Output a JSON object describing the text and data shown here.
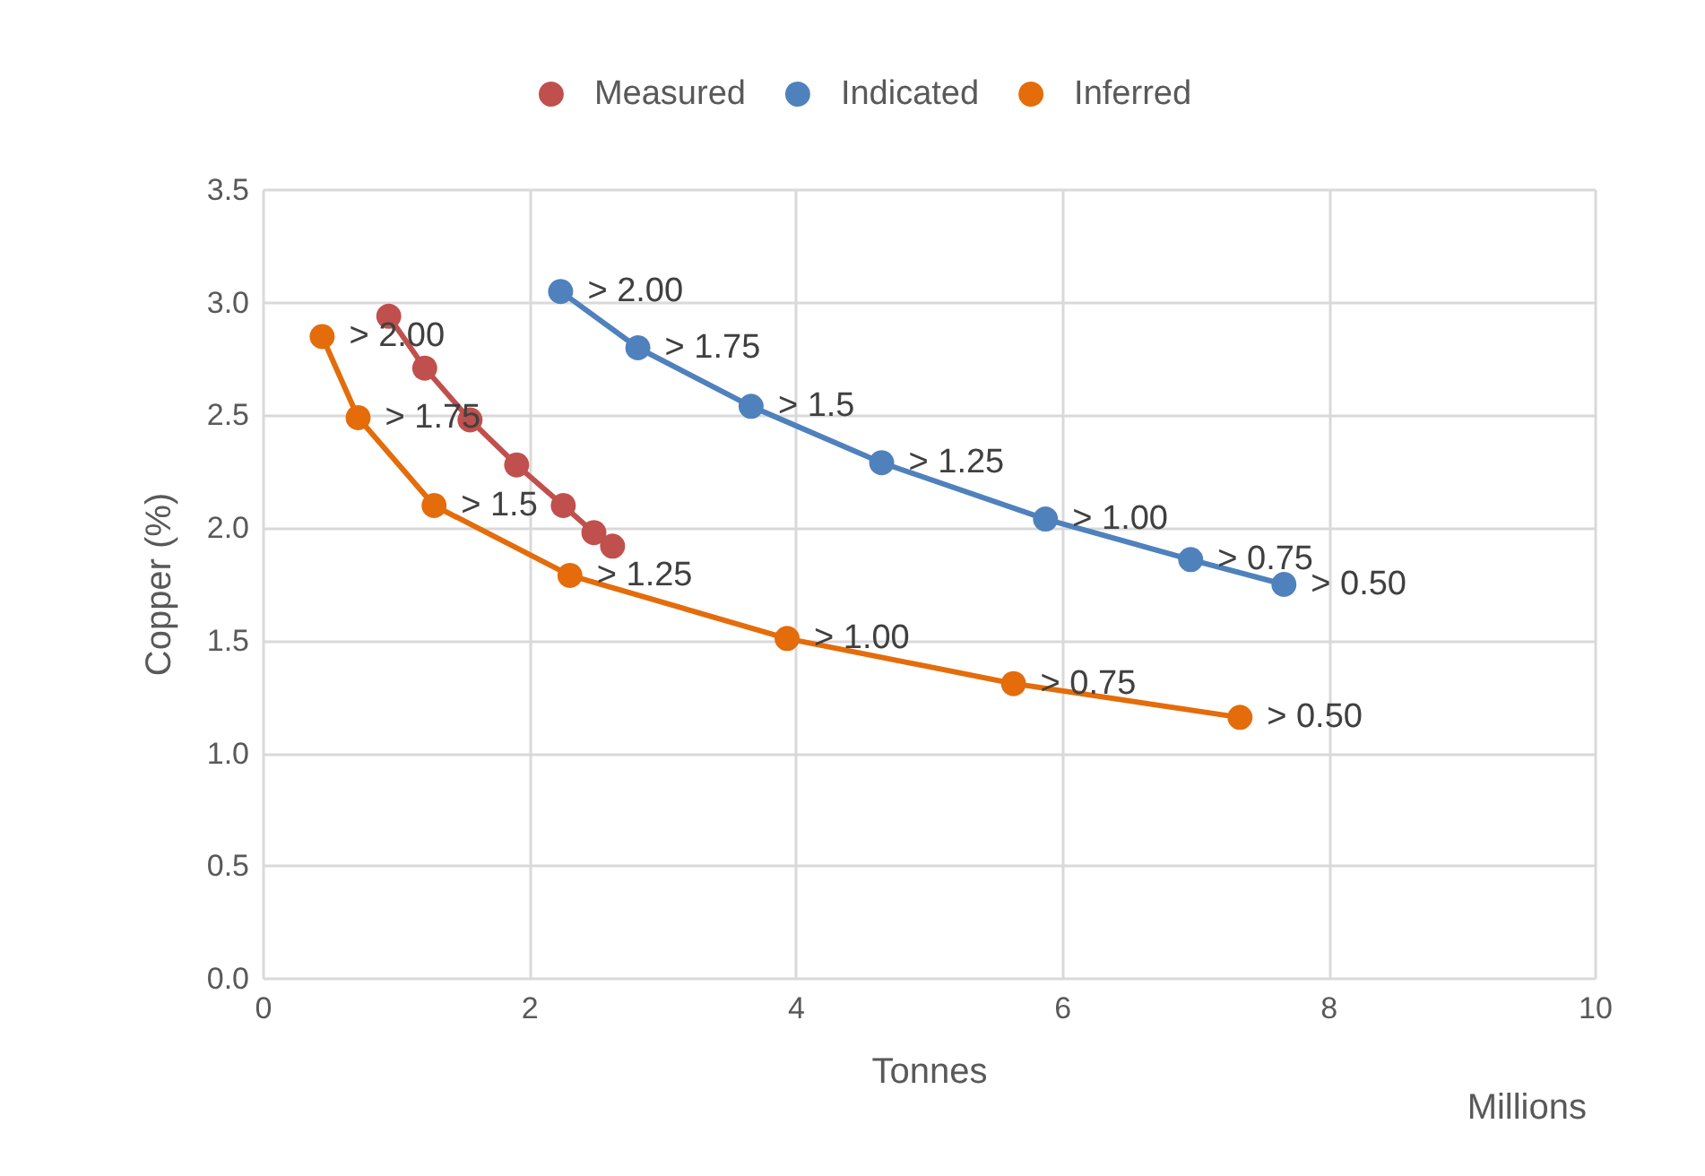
{
  "chart_data": {
    "type": "line",
    "xlabel": "Tonnes",
    "ylabel": "Copper (%)",
    "annotations": [
      "Millions"
    ],
    "xlim": [
      0,
      10
    ],
    "xticks": [
      0,
      2,
      4,
      6,
      8,
      10
    ],
    "ylim": [
      0,
      3.5
    ],
    "yticks": [
      {
        "value": 0,
        "label": "0.0"
      },
      {
        "value": 0.5,
        "label": "0.5"
      },
      {
        "value": 1,
        "label": "1.0"
      },
      {
        "value": 1.5,
        "label": "1.5"
      },
      {
        "value": 2,
        "label": "2.0"
      },
      {
        "value": 2.5,
        "label": "2.5"
      },
      {
        "value": 3,
        "label": "3.0"
      },
      {
        "value": 3.5,
        "label": "3.5"
      }
    ],
    "grid": true,
    "legend": "top",
    "marker": "circle",
    "line_style": "solid",
    "series": [
      {
        "name": "Measured",
        "color": "#c0504d",
        "x": [
          0.94,
          1.21,
          1.55,
          1.9,
          2.25,
          2.48,
          2.62
        ],
        "values": [
          2.94,
          2.71,
          2.48,
          2.28,
          2.1,
          1.98,
          1.92
        ]
      },
      {
        "name": "Indicated",
        "color": "#4f81bd",
        "x": [
          2.23,
          2.81,
          3.66,
          4.64,
          5.87,
          6.96,
          7.66
        ],
        "values": [
          3.05,
          2.8,
          2.54,
          2.29,
          2.04,
          1.86,
          1.75
        ],
        "value_labels": [
          "> 2.00",
          "> 1.75",
          "> 1.5",
          "> 1.25",
          "> 1.00",
          "> 0.75",
          "> 0.50"
        ]
      },
      {
        "name": "Inferred",
        "color": "#e46c0a",
        "x": [
          0.44,
          0.71,
          1.28,
          2.3,
          3.93,
          5.63,
          7.33
        ],
        "values": [
          2.85,
          2.49,
          2.1,
          1.79,
          1.51,
          1.31,
          1.16
        ],
        "value_labels": [
          "> 2.00",
          "> 1.75",
          "> 1.5",
          "> 1.25",
          "> 1.00",
          "> 0.75",
          "> 0.50"
        ]
      }
    ]
  }
}
